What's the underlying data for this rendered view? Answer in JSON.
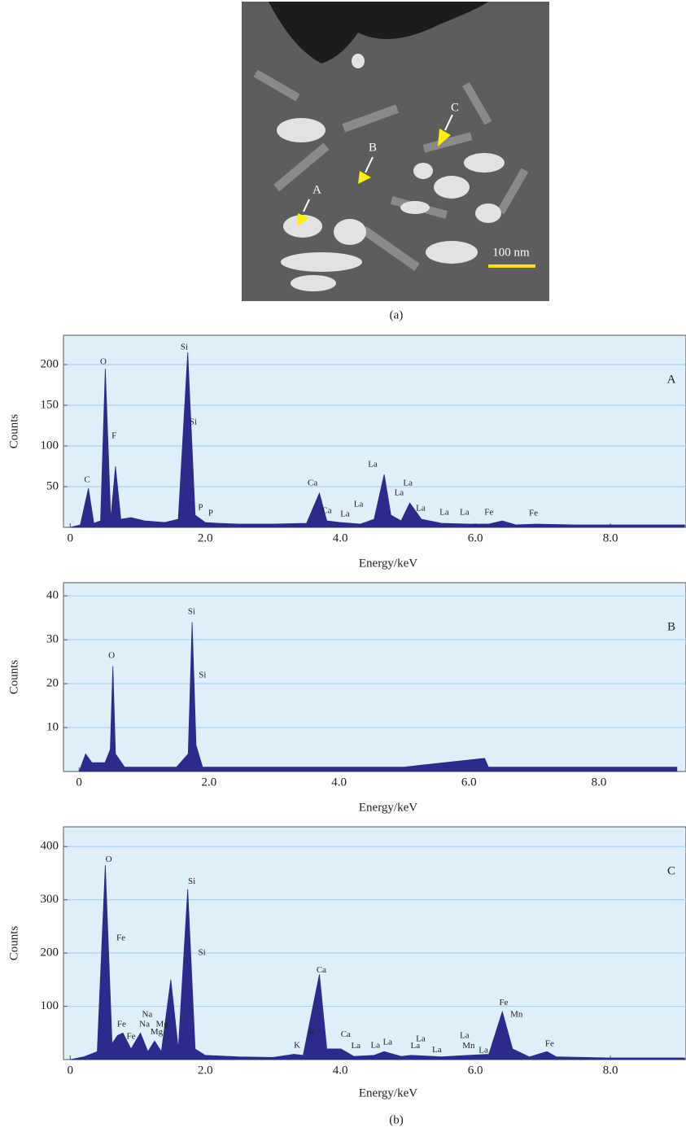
{
  "image": {
    "caption": "(a)",
    "markers": [
      "A",
      "B",
      "C"
    ],
    "scale_bar": "100 nm"
  },
  "figure_caption": "(b)",
  "chart_data": [
    {
      "type": "area",
      "panel_label": "A",
      "xlabel": "Energy/keV",
      "ylabel": "Counts",
      "color": "#2b2b8c",
      "grid": true,
      "xlim": [
        -0.1,
        9.12
      ],
      "ylim": [
        0,
        236
      ],
      "xticks": [
        0,
        {
          "value": 2,
          "label": "2.0"
        },
        {
          "value": 4,
          "label": "4.0"
        },
        {
          "value": 6,
          "label": "6.0"
        },
        {
          "value": 8,
          "label": "8.0"
        }
      ],
      "yticks": [
        50,
        100,
        150,
        200
      ],
      "x": [
        0,
        0.15,
        0.27,
        0.35,
        0.45,
        0.52,
        0.6,
        0.67,
        0.75,
        0.9,
        1.1,
        1.4,
        1.6,
        1.74,
        1.85,
        2.0,
        2.2,
        2.5,
        3.0,
        3.5,
        3.69,
        3.8,
        4.0,
        4.3,
        4.5,
        4.65,
        4.75,
        4.9,
        5.03,
        5.2,
        5.5,
        5.9,
        6.2,
        6.4,
        6.6,
        6.9,
        7.5,
        8.5,
        9.1
      ],
      "values": [
        0,
        3,
        48,
        5,
        8,
        195,
        10,
        75,
        10,
        12,
        8,
        6,
        10,
        215,
        15,
        6,
        5,
        4,
        4,
        5,
        42,
        8,
        6,
        4,
        10,
        65,
        15,
        8,
        30,
        10,
        5,
        4,
        4,
        8,
        3,
        4,
        3,
        3,
        3
      ],
      "annotations": [
        {
          "text": "C",
          "x": 0.25,
          "y": 58
        },
        {
          "text": "O",
          "x": 0.49,
          "y": 203
        },
        {
          "text": "F",
          "x": 0.65,
          "y": 112
        },
        {
          "text": "Si",
          "x": 1.69,
          "y": 221
        },
        {
          "text": "Si",
          "x": 1.82,
          "y": 129
        },
        {
          "text": "P",
          "x": 1.93,
          "y": 24
        },
        {
          "text": "P",
          "x": 2.08,
          "y": 17
        },
        {
          "text": "Ca",
          "x": 3.59,
          "y": 54
        },
        {
          "text": "Ca",
          "x": 3.8,
          "y": 20
        },
        {
          "text": "La",
          "x": 4.07,
          "y": 16
        },
        {
          "text": "La",
          "x": 4.27,
          "y": 28
        },
        {
          "text": "La",
          "x": 4.48,
          "y": 77
        },
        {
          "text": "La",
          "x": 5.0,
          "y": 54
        },
        {
          "text": "La",
          "x": 4.87,
          "y": 42
        },
        {
          "text": "La",
          "x": 5.19,
          "y": 23
        },
        {
          "text": "La",
          "x": 5.54,
          "y": 18
        },
        {
          "text": "La",
          "x": 5.84,
          "y": 18
        },
        {
          "text": "Fe",
          "x": 6.2,
          "y": 18
        },
        {
          "text": "Fe",
          "x": 6.86,
          "y": 17
        }
      ]
    },
    {
      "type": "area",
      "panel_label": "B",
      "xlabel": "Energy/keV",
      "ylabel": "Counts",
      "color": "#2b2b8c",
      "grid": true,
      "xlim": [
        -0.24,
        9.34
      ],
      "ylim": [
        0,
        43
      ],
      "xticks": [
        0,
        {
          "value": 2,
          "label": "2.0"
        },
        {
          "value": 4,
          "label": "4.0"
        },
        {
          "value": 6,
          "label": "6.0"
        },
        {
          "value": 8,
          "label": "8.0"
        }
      ],
      "yticks": [
        10,
        20,
        30,
        40
      ],
      "x": [
        0,
        0.1,
        0.2,
        0.4,
        0.48,
        0.52,
        0.56,
        0.7,
        1.0,
        1.5,
        1.68,
        1.74,
        1.8,
        1.9,
        3,
        4,
        5,
        6.24,
        6.3,
        7,
        8,
        9.2
      ],
      "values": [
        0,
        4,
        2,
        2,
        5,
        24,
        4,
        1,
        1,
        1,
        4,
        34,
        6,
        1,
        1,
        1,
        1,
        3,
        1,
        1,
        1,
        1
      ],
      "annotations": [
        {
          "text": "O",
          "x": 0.5,
          "y": 26.3
        },
        {
          "text": "Si",
          "x": 1.73,
          "y": 36.3
        },
        {
          "text": "Si",
          "x": 1.9,
          "y": 21.9
        }
      ]
    },
    {
      "type": "area",
      "panel_label": "C",
      "xlabel": "Energy/keV",
      "ylabel": "Counts",
      "color": "#2b2b8c",
      "grid": true,
      "xlim": [
        -0.1,
        9.12
      ],
      "ylim": [
        0,
        437
      ],
      "xticks": [
        0,
        {
          "value": 2,
          "label": "2.0"
        },
        {
          "value": 4,
          "label": "4.0"
        },
        {
          "value": 6,
          "label": "6.0"
        },
        {
          "value": 8,
          "label": "8.0"
        }
      ],
      "yticks": [
        100,
        200,
        300,
        400
      ],
      "x": [
        0,
        0.2,
        0.4,
        0.52,
        0.62,
        0.7,
        0.78,
        0.9,
        1.04,
        1.15,
        1.25,
        1.35,
        1.49,
        1.6,
        1.74,
        1.85,
        2.0,
        2.5,
        3.0,
        3.31,
        3.45,
        3.69,
        3.8,
        4.01,
        4.2,
        4.5,
        4.65,
        4.9,
        5.05,
        5.5,
        5.9,
        6.2,
        6.4,
        6.55,
        6.8,
        7.06,
        7.2,
        8,
        9.1
      ],
      "values": [
        0,
        5,
        15,
        365,
        30,
        45,
        50,
        20,
        50,
        15,
        35,
        15,
        150,
        20,
        320,
        20,
        8,
        5,
        4,
        10,
        8,
        160,
        20,
        20,
        6,
        8,
        15,
        6,
        8,
        5,
        8,
        10,
        90,
        20,
        5,
        15,
        5,
        3,
        3
      ],
      "annotations": [
        {
          "text": "O",
          "x": 0.57,
          "y": 375
        },
        {
          "text": "Fe",
          "x": 0.75,
          "y": 228
        },
        {
          "text": "Si",
          "x": 1.8,
          "y": 334
        },
        {
          "text": "Si",
          "x": 1.95,
          "y": 200
        },
        {
          "text": "Fe",
          "x": 0.76,
          "y": 66
        },
        {
          "text": "Fe",
          "x": 0.9,
          "y": 43
        },
        {
          "text": "Na",
          "x": 1.14,
          "y": 84
        },
        {
          "text": "Na",
          "x": 1.1,
          "y": 66
        },
        {
          "text": "Mg",
          "x": 1.36,
          "y": 66
        },
        {
          "text": "Mg",
          "x": 1.28,
          "y": 51
        },
        {
          "text": "Ca",
          "x": 3.72,
          "y": 167
        },
        {
          "text": "K",
          "x": 3.36,
          "y": 26
        },
        {
          "text": "K",
          "x": 3.58,
          "y": 49
        },
        {
          "text": "Ca",
          "x": 4.08,
          "y": 47
        },
        {
          "text": "La",
          "x": 4.23,
          "y": 25
        },
        {
          "text": "La",
          "x": 4.52,
          "y": 26
        },
        {
          "text": "La",
          "x": 4.7,
          "y": 32
        },
        {
          "text": "La",
          "x": 5.19,
          "y": 38
        },
        {
          "text": "La",
          "x": 5.11,
          "y": 25
        },
        {
          "text": "La",
          "x": 5.43,
          "y": 18
        },
        {
          "text": "La",
          "x": 5.84,
          "y": 44
        },
        {
          "text": "Mn",
          "x": 5.9,
          "y": 25
        },
        {
          "text": "La",
          "x": 6.12,
          "y": 17
        },
        {
          "text": "Fe",
          "x": 6.42,
          "y": 106
        },
        {
          "text": "Mn",
          "x": 6.61,
          "y": 84
        },
        {
          "text": "Fe",
          "x": 7.1,
          "y": 29
        }
      ]
    }
  ]
}
